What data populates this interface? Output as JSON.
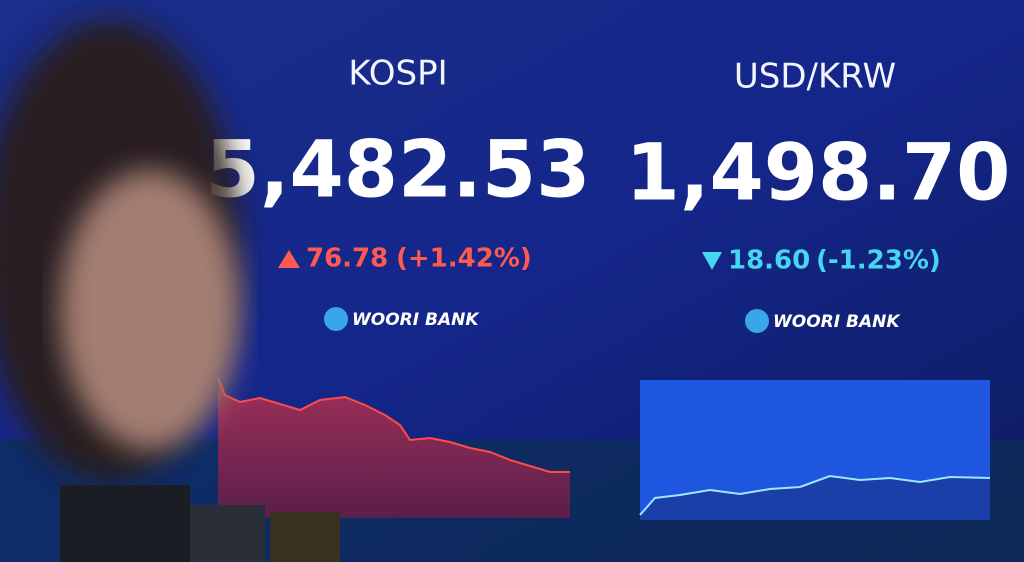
{
  "panels": [
    {
      "title": "KOSPI",
      "value": "5,482.53",
      "change": "76.78",
      "change_percent": "(+1.42%)",
      "logo": "WOORI BANK"
    },
    {
      "title": "USD/KRW",
      "value": "1,498.70",
      "change": "18.60",
      "change_percent": "(-1.23%)",
      "logo": "WOORI BANK"
    }
  ]
}
